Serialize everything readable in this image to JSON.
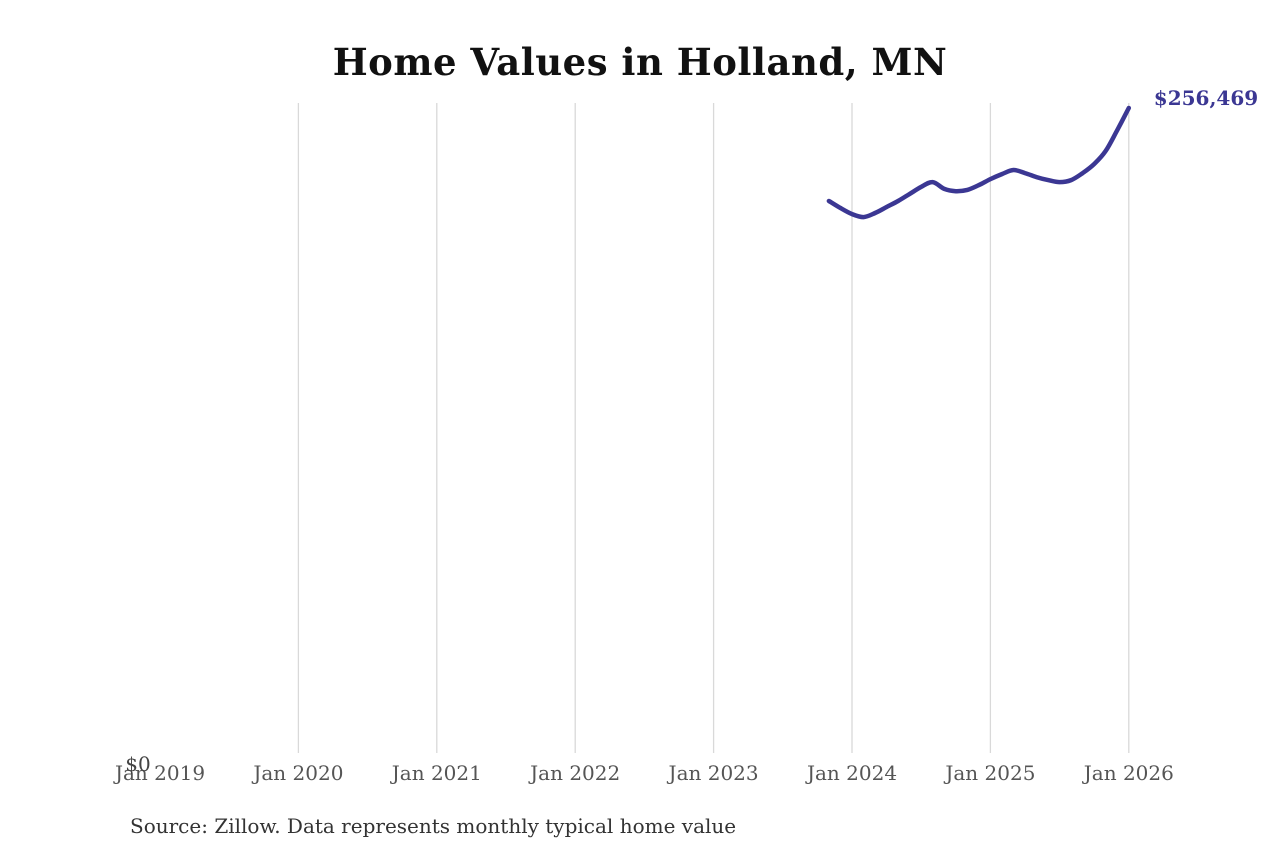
{
  "page": {
    "source_note": "Source: Zillow. Data represents monthly typical home value"
  },
  "chart_data": {
    "type": "line",
    "title": "Home Values in Holland, MN",
    "xlabel": "",
    "ylabel": "",
    "x_ticks": [
      "Jan 2019",
      "Jan 2020",
      "Jan 2021",
      "Jan 2022",
      "Jan 2023",
      "Jan 2024",
      "Jan 2025",
      "Jan 2026"
    ],
    "y_zero_label": "$0",
    "end_label": "$256,469",
    "latest_value": 256469,
    "ylim": [
      0,
      256469
    ],
    "x_range": [
      "Jan 2019",
      "Jan 2026"
    ],
    "grid": "vertical-only",
    "legend": "none",
    "line_color": "#3b3793",
    "grid_color": "#d9d9d9",
    "series": [
      {
        "name": "Monthly typical home value",
        "x": [
          "Nov 2023",
          "Dec 2023",
          "Jan 2024",
          "Feb 2024",
          "Mar 2024",
          "Apr 2024",
          "May 2024",
          "Jun 2024",
          "Jul 2024",
          "Aug 2024",
          "Sep 2024",
          "Oct 2024",
          "Nov 2024",
          "Dec 2024",
          "Jan 2025",
          "Feb 2025",
          "Mar 2025",
          "Apr 2025",
          "May 2025",
          "Jun 2025",
          "Jul 2025",
          "Aug 2025",
          "Sep 2025",
          "Oct 2025",
          "Nov 2025",
          "Dec 2025",
          "Jan 2026"
        ],
        "values": [
          219500,
          216700,
          214300,
          213100,
          214700,
          217100,
          219500,
          222300,
          225100,
          227000,
          224300,
          223400,
          223900,
          225800,
          228200,
          230200,
          231800,
          230600,
          229000,
          227800,
          227000,
          227800,
          230600,
          234200,
          239400,
          247700,
          256469
        ]
      }
    ]
  }
}
